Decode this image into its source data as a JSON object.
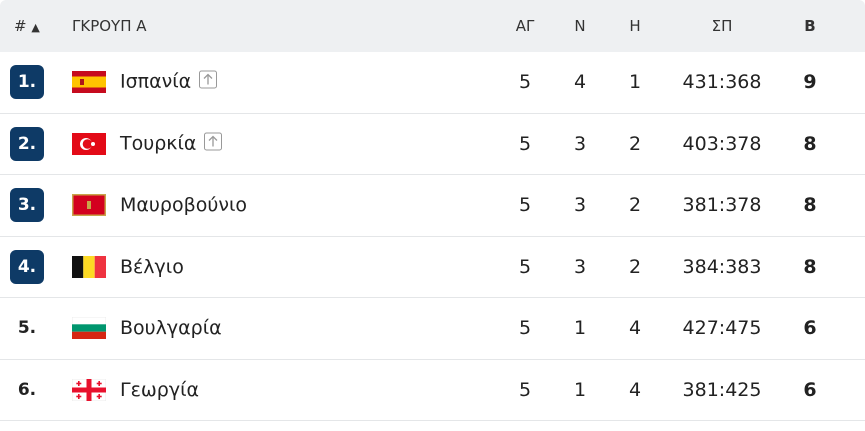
{
  "header": {
    "rank": "#",
    "group": "ΓΚΡΟΥΠ Α",
    "columns": [
      "ΑΓ",
      "Ν",
      "Η",
      "ΣΠ",
      "Β"
    ]
  },
  "rows": [
    {
      "rank": "1.",
      "team": "Ισπανία",
      "played": 5,
      "wins": 4,
      "losses": 1,
      "points": "431:368",
      "total": 9
    },
    {
      "rank": "2.",
      "team": "Τουρκία",
      "played": 5,
      "wins": 3,
      "losses": 2,
      "points": "403:378",
      "total": 8
    },
    {
      "rank": "3.",
      "team": "Μαυροβούνιο",
      "played": 5,
      "wins": 3,
      "losses": 2,
      "points": "381:378",
      "total": 8
    },
    {
      "rank": "4.",
      "team": "Βέλγιο",
      "played": 5,
      "wins": 3,
      "losses": 2,
      "points": "384:383",
      "total": 8
    },
    {
      "rank": "5.",
      "team": "Βουλγαρία",
      "played": 5,
      "wins": 1,
      "losses": 4,
      "points": "427:475",
      "total": 6
    },
    {
      "rank": "6.",
      "team": "Γεωργία",
      "played": 5,
      "wins": 1,
      "losses": 4,
      "points": "381:425",
      "total": 6
    }
  ]
}
